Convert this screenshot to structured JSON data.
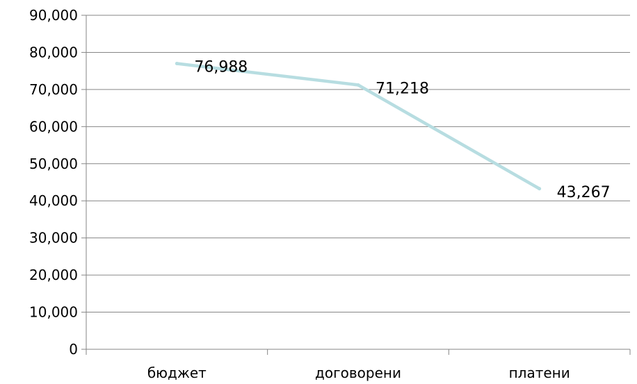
{
  "chart_data": {
    "type": "line",
    "categories": [
      "бюджет",
      "договорени",
      "платени"
    ],
    "values": [
      76988,
      71218,
      43267
    ],
    "data_labels": [
      "76,988",
      "71,218",
      "43,267"
    ],
    "ylim": [
      0,
      90000
    ],
    "y_ticks": [
      0,
      10000,
      20000,
      30000,
      40000,
      50000,
      60000,
      70000,
      80000,
      90000
    ],
    "y_tick_labels": [
      "0",
      "10,000",
      "20,000",
      "30,000",
      "40,000",
      "50,000",
      "60,000",
      "70,000",
      "80,000",
      "90,000"
    ],
    "grid": true,
    "legend": "none",
    "title": "",
    "xlabel": "",
    "ylabel": "",
    "line_color": "#b7dde1"
  }
}
